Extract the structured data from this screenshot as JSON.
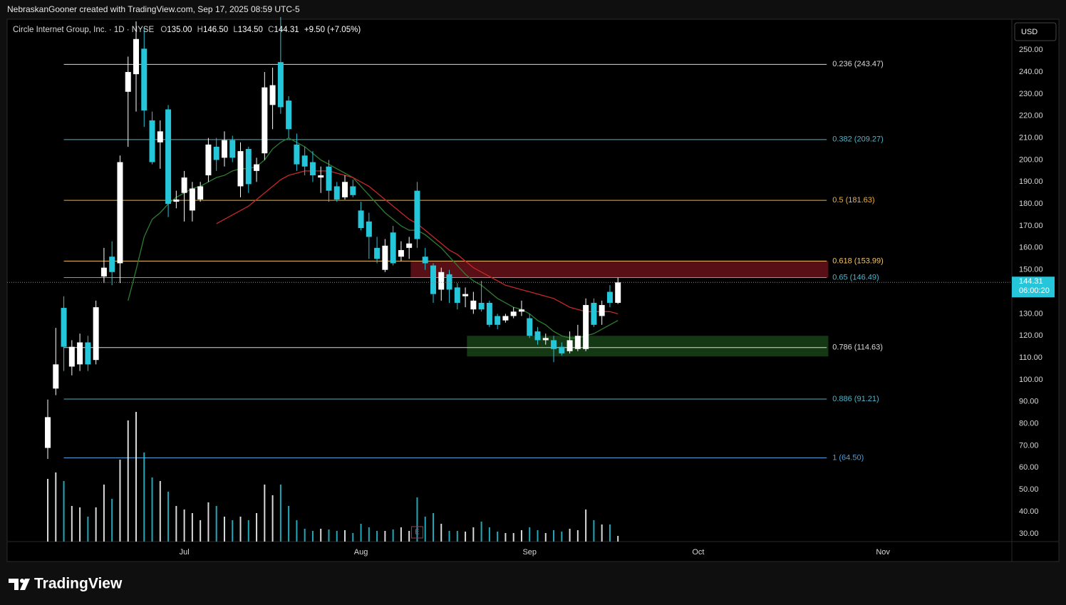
{
  "page": {
    "attribution": "NebraskanGooner created with TradingView.com, Sep 17, 2025 08:59 UTC-5",
    "legend": [
      "Circle Internet Group, Inc. · 1D · NYSE",
      "O",
      "135.00",
      "H",
      "146.50",
      "L",
      "134.50",
      "C",
      "144.31",
      "+9.50 (+7.05%)"
    ],
    "currency": "USD",
    "last_price": {
      "value": 144.31,
      "label": "144.31"
    },
    "countdown": "06:00:20",
    "brand": "TradingView"
  },
  "chart_data": {
    "type": "candlestick",
    "up_color": "#ffffff",
    "down_color": "#26c6da",
    "xlim": [
      -5.06,
      120.05
    ],
    "xticks": [
      {
        "value": 17,
        "label": "Jul"
      },
      {
        "value": 39,
        "label": "Aug"
      },
      {
        "value": 60,
        "label": "Sep"
      },
      {
        "value": 81,
        "label": "Oct"
      },
      {
        "value": 104,
        "label": "Nov"
      }
    ],
    "ylim": [
      26.4,
      264
    ],
    "yticks": [
      {
        "value": 250,
        "label": "250.00"
      },
      {
        "value": 240,
        "label": "240.00"
      },
      {
        "value": 230,
        "label": "230.00"
      },
      {
        "value": 220,
        "label": "220.00"
      },
      {
        "value": 210,
        "label": "210.00"
      },
      {
        "value": 200,
        "label": "200.00"
      },
      {
        "value": 190,
        "label": "190.00"
      },
      {
        "value": 180,
        "label": "180.00"
      },
      {
        "value": 170,
        "label": "170.00"
      },
      {
        "value": 160,
        "label": "160.00"
      },
      {
        "value": 150,
        "label": "150.00"
      },
      {
        "value": 140,
        "label": "140.00"
      },
      {
        "value": 130,
        "label": "130.00"
      },
      {
        "value": 120,
        "label": "120.00"
      },
      {
        "value": 110,
        "label": "110.00"
      },
      {
        "value": 100,
        "label": "100.00"
      },
      {
        "value": 90,
        "label": "90.00"
      },
      {
        "value": 80,
        "label": "80.00"
      },
      {
        "value": 70,
        "label": "70.00"
      },
      {
        "value": 60,
        "label": "60.00"
      },
      {
        "value": 50,
        "label": "50.00"
      },
      {
        "value": 40,
        "label": "40.00"
      },
      {
        "value": 30,
        "label": "30.00"
      }
    ],
    "open": [
      69,
      96,
      132.7,
      106,
      107,
      117,
      109,
      147,
      156,
      153,
      231,
      239,
      250.6,
      218,
      208,
      223,
      181,
      185,
      177,
      182,
      193,
      206,
      201,
      209,
      188,
      205,
      195,
      203,
      225,
      244.5,
      227,
      207,
      202,
      199,
      192,
      197,
      188,
      183,
      188,
      177,
      172,
      160,
      150,
      167,
      156,
      160,
      186,
      156,
      152,
      141,
      148,
      142,
      138,
      132,
      135,
      135,
      129,
      127,
      129,
      131,
      128,
      122,
      118,
      118,
      115,
      113,
      114,
      114,
      135,
      129,
      140,
      135
    ],
    "high": [
      91,
      123.6,
      138,
      118,
      121,
      120,
      136,
      160,
      163,
      202,
      247,
      263,
      260,
      222,
      218,
      225,
      186,
      195,
      190,
      190,
      210,
      210,
      213,
      211,
      208,
      206,
      201,
      240,
      242,
      265,
      229,
      212,
      206,
      204,
      197,
      200,
      190,
      193,
      191,
      181,
      176,
      165,
      164,
      170,
      163,
      165,
      190,
      160,
      153,
      151,
      150,
      144,
      142,
      140,
      145,
      136,
      130,
      130,
      133,
      136,
      130,
      124,
      121,
      120,
      117,
      122,
      125,
      137,
      137,
      136,
      143,
      146.5
    ],
    "low": [
      64,
      93,
      104,
      102,
      104,
      104,
      107,
      144,
      143,
      144,
      206,
      222,
      215,
      198,
      196,
      174,
      178,
      172,
      172,
      181,
      190,
      195,
      197,
      199,
      183,
      185,
      190,
      200,
      214,
      221,
      210,
      195,
      193,
      190,
      185,
      181,
      181,
      182,
      183,
      168,
      155,
      153,
      149,
      152,
      154,
      155,
      160,
      150,
      135,
      136,
      135,
      132,
      133,
      130,
      131,
      124,
      123,
      126,
      128,
      129,
      119,
      116,
      116,
      108,
      111,
      112,
      113,
      113,
      124,
      125,
      133,
      134.5
    ],
    "close": [
      83,
      107,
      115,
      115,
      117,
      107,
      133,
      151,
      149,
      199,
      240,
      255,
      222.5,
      199,
      213,
      180,
      182,
      192,
      187,
      188,
      207,
      200,
      209,
      201,
      204,
      189,
      198,
      233,
      234,
      224,
      214,
      198,
      197,
      193,
      193,
      186,
      182,
      190,
      184,
      169,
      165,
      155,
      161,
      153,
      159,
      162,
      164,
      153,
      139,
      149,
      141,
      135,
      139,
      136,
      132,
      125,
      125,
      129,
      131,
      132,
      120,
      118,
      119,
      114,
      112,
      118,
      120,
      134,
      125,
      134,
      135,
      144.31
    ],
    "volume": [
      88,
      97,
      85,
      50,
      48,
      35,
      48,
      80,
      60,
      115,
      170,
      182,
      125,
      90,
      85,
      70,
      50,
      45,
      40,
      30,
      55,
      50,
      35,
      30,
      35,
      30,
      40,
      80,
      65,
      80,
      50,
      30,
      18,
      15,
      18,
      17,
      15,
      16,
      12,
      25,
      20,
      15,
      15,
      17,
      20,
      15,
      62,
      35,
      40,
      25,
      15,
      15,
      14,
      20,
      28,
      20,
      14,
      12,
      12,
      16,
      20,
      16,
      12,
      16,
      14,
      18,
      16,
      45,
      30,
      24,
      24,
      8
    ],
    "series": [
      {
        "color": "#2e7d32",
        "values": [
          null,
          null,
          null,
          null,
          null,
          null,
          null,
          null,
          null,
          null,
          136,
          150,
          165,
          173,
          176,
          180,
          183,
          185,
          187,
          188,
          190,
          192,
          193,
          195,
          196,
          196,
          197,
          200,
          205,
          208,
          210,
          208,
          206,
          203,
          200,
          198,
          196,
          194,
          192,
          188,
          184,
          180,
          176,
          173,
          170,
          168,
          168,
          166,
          163,
          160,
          156,
          152,
          148,
          145,
          143,
          140,
          137,
          135,
          133,
          132,
          130,
          127,
          125,
          122,
          120,
          119,
          119,
          120,
          121,
          123,
          125,
          127
        ]
      },
      {
        "color": "#c62828",
        "values": [
          null,
          null,
          null,
          null,
          null,
          null,
          null,
          null,
          null,
          null,
          null,
          null,
          null,
          null,
          null,
          null,
          null,
          null,
          null,
          null,
          null,
          171,
          173,
          175,
          177,
          179,
          182,
          185,
          188,
          191,
          193,
          194,
          195,
          195,
          195,
          195,
          194,
          193,
          192,
          190,
          188,
          185,
          182,
          179,
          176,
          173,
          171,
          168,
          165,
          162,
          159,
          157,
          154,
          151,
          149,
          147,
          145,
          143,
          142,
          141,
          140,
          139,
          138,
          137,
          135,
          133,
          132,
          131,
          131,
          131,
          131,
          130
        ]
      }
    ],
    "fib_levels": [
      {
        "price": 243.47,
        "label": "0.236 (243.47)",
        "color": "#d9d9d9",
        "start": 2,
        "end": 97
      },
      {
        "price": 209.27,
        "label": "0.382 (209.27)",
        "color": "#4fb3c8",
        "start": 2,
        "end": 97
      },
      {
        "price": 181.63,
        "label": "0.5 (181.63)",
        "color": "#f2b134",
        "start": 2,
        "end": 97
      },
      {
        "price": 153.99,
        "label": "0.618 (153.99)",
        "color": "#f5c266",
        "start": 2,
        "end": 97
      },
      {
        "price": 146.49,
        "label": "0.65 (146.49)",
        "color": "#4fb3c8",
        "start": 2,
        "end": 97
      },
      {
        "price": 114.63,
        "label": "0.786 (114.63)",
        "color": "#d9d9d9",
        "start": 2,
        "end": 97
      },
      {
        "price": 91.21,
        "label": "0.886 (91.21)",
        "color": "#4fb3c8",
        "start": 2,
        "end": 97
      },
      {
        "price": 64.5,
        "label": "1 (64.50)",
        "color": "#4f9fd8",
        "start": 2,
        "end": 97
      }
    ],
    "zones": [
      {
        "top": 153.99,
        "bottom": 146.49,
        "start": 45.2,
        "end": 97.2,
        "color": "rgba(160,30,40,0.55)"
      },
      {
        "top": 120,
        "bottom": 110.6,
        "start": 52.2,
        "end": 97.2,
        "color": "rgba(40,110,40,0.5)"
      }
    ],
    "earnings": {
      "index": 46,
      "label": "E"
    }
  }
}
